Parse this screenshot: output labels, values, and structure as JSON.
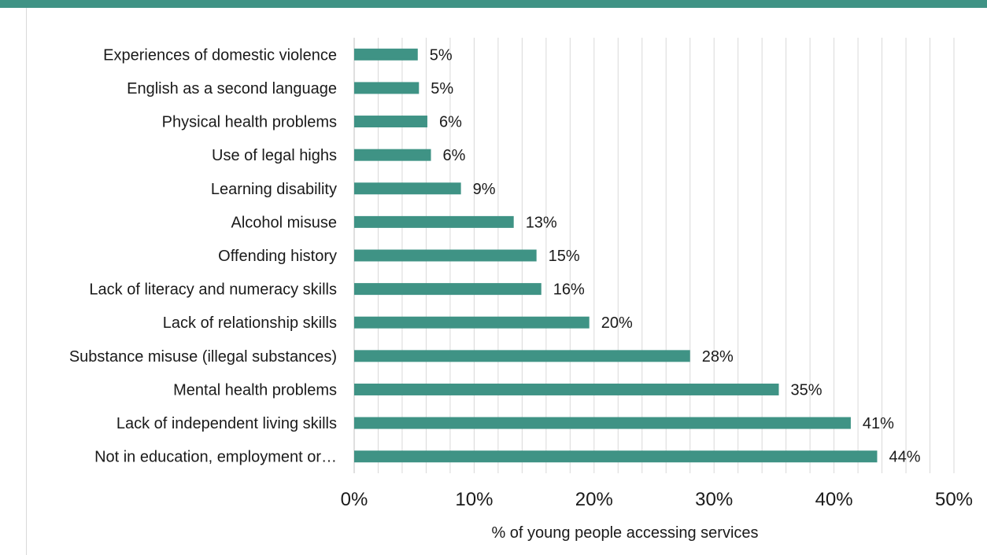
{
  "chart_data": {
    "type": "bar",
    "orientation": "horizontal",
    "categories": [
      "Experiences of domestic violence",
      "English as a second language",
      "Physical health problems",
      "Use of legal highs",
      "Learning disability",
      "Alcohol misuse",
      "Offending history",
      "Lack of literacy and numeracy skills",
      "Lack of relationship skills",
      "Substance misuse (illegal substances)",
      "Mental health problems",
      "Lack of independent living skills",
      "Not in education, employment or…"
    ],
    "values": [
      5.3,
      5.4,
      6.1,
      6.4,
      8.9,
      13.3,
      15.2,
      15.6,
      19.6,
      28.0,
      35.4,
      41.4,
      43.6
    ],
    "value_labels": [
      "5%",
      "5%",
      "6%",
      "6%",
      "9%",
      "13%",
      "15%",
      "16%",
      "20%",
      "28%",
      "35%",
      "41%",
      "44%"
    ],
    "x_ticks": [
      "0%",
      "10%",
      "20%",
      "30%",
      "40%",
      "50%"
    ],
    "xlim": [
      0,
      50
    ],
    "xlabel": "% of young people accessing services",
    "ylabel": "",
    "title": "",
    "grid": true,
    "bar_color": "#3f9385",
    "grid_color": "#d9d9d9"
  }
}
